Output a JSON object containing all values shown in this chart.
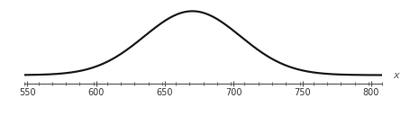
{
  "mean": 670,
  "std": 35,
  "x_min": 548,
  "x_max": 808,
  "x_ticks_major": [
    550,
    600,
    650,
    700,
    750,
    800
  ],
  "x_tick_minor_spacing": 10,
  "curve_color": "#1a1a1a",
  "curve_linewidth": 1.6,
  "axis_color": "#555555",
  "xlabel": "x",
  "xlabel_color": "#555555",
  "tick_color": "#555555",
  "label_color": "#333333",
  "background_color": "#ffffff",
  "fig_width": 4.56,
  "fig_height": 1.29,
  "dpi": 100
}
